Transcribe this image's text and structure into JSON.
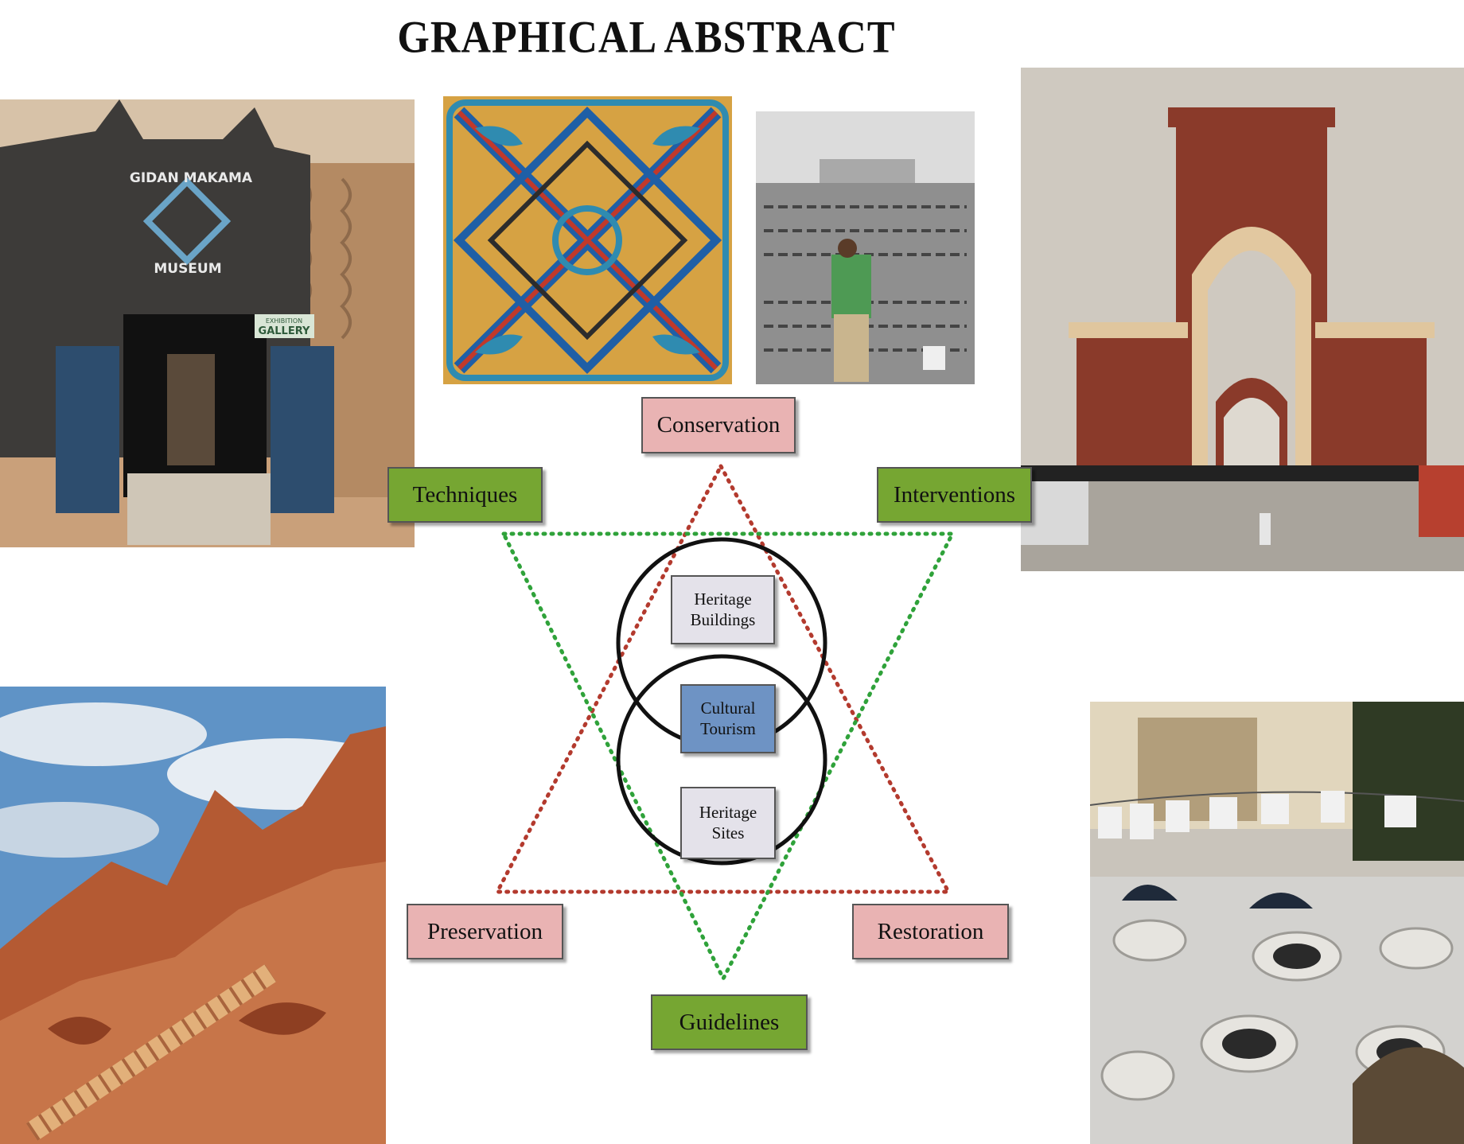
{
  "title": "GRAPHICAL ABSTRACT",
  "photos": {
    "museum": {
      "sign_top": "GIDAN MAKAMA",
      "sign_bottom": "MUSEUM",
      "gallery_small": "EXHIBITION",
      "gallery": "GALLERY"
    }
  },
  "diagram": {
    "top": "Conservation",
    "upper_left": "Techniques",
    "upper_right": "Interventions",
    "lower_left": "Preservation",
    "lower_right": "Restoration",
    "bottom": "Guidelines",
    "heritage_buildings": "Heritage Buildings",
    "cultural_tourism": "Cultural Tourism",
    "heritage_sites": "Heritage Sites"
  },
  "colors": {
    "pink_box": "#e9b3b3",
    "green_box": "#76a632",
    "grey_box": "#e4e2ea",
    "blue_box": "#6e93c4",
    "red_dots": "#b33a2e",
    "green_dots": "#2fa23a"
  }
}
